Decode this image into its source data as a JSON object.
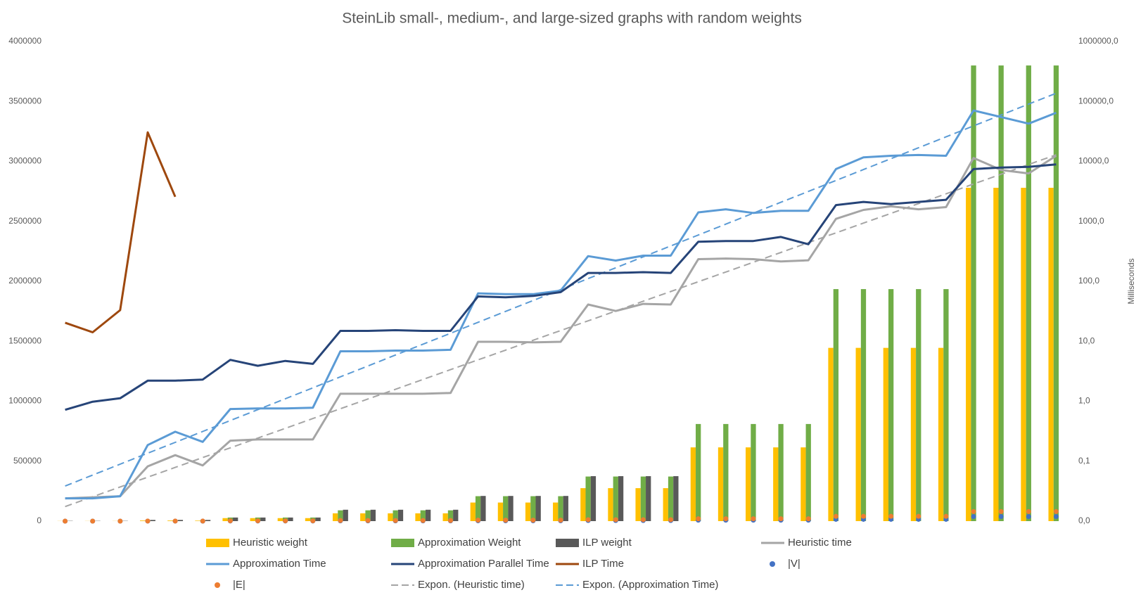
{
  "chart_data": {
    "type": "combo",
    "title": "SteinLib small-, medium-, and large-sized graphs with random weights",
    "y2_label": "Milliseconds",
    "categories": [
      null,
      null,
      null,
      null,
      null,
      null,
      null,
      null,
      null,
      null,
      null,
      null,
      null,
      null,
      null,
      null,
      null,
      null,
      null,
      null,
      null,
      null,
      null,
      null,
      null,
      null,
      null,
      null,
      null,
      null,
      null,
      null,
      null,
      null,
      null,
      null,
      null
    ],
    "ylim": [
      0,
      4000000
    ],
    "yticks": [
      0,
      500000,
      1000000,
      1500000,
      2000000,
      2500000,
      3000000,
      3500000,
      4000000
    ],
    "y2lim": [
      0.01,
      1000000
    ],
    "y2log": true,
    "y2ticks": [
      {
        "value": 0.01,
        "label": "0,0"
      },
      {
        "value": 0.1,
        "label": "0,1"
      },
      {
        "value": 1,
        "label": "1,0"
      },
      {
        "value": 10,
        "label": "10,0"
      },
      {
        "value": 100,
        "label": "100,0"
      },
      {
        "value": 1000,
        "label": "1000,0"
      },
      {
        "value": 10000,
        "label": "10000,0"
      },
      {
        "value": 100000,
        "label": "100000,0"
      },
      {
        "value": 1000000,
        "label": "1000000,0"
      }
    ],
    "grid": false,
    "legend": "bottom",
    "series": [
      {
        "name": "Heuristic weight",
        "kind": "bar",
        "color": "#FFC000",
        "values": [
          1000,
          1000,
          1000,
          5000,
          5000,
          4000,
          25000,
          25000,
          25000,
          25000,
          65000,
          65000,
          65000,
          65000,
          65000,
          155000,
          155000,
          155000,
          155000,
          275000,
          275000,
          275000,
          275000,
          615000,
          615000,
          615000,
          615000,
          615000,
          1445000,
          1445000,
          1445000,
          1445000,
          1445000,
          2780000,
          2780000,
          2780000,
          2780000
        ]
      },
      {
        "name": "Approximation Weight",
        "kind": "bar",
        "color": "#70AD47",
        "values": [
          2000,
          2000,
          2000,
          8000,
          8000,
          8000,
          30000,
          30000,
          30000,
          30000,
          90000,
          90000,
          90000,
          90000,
          90000,
          208000,
          208000,
          208000,
          208000,
          372000,
          372000,
          372000,
          372000,
          810000,
          810000,
          810000,
          810000,
          810000,
          1935000,
          1935000,
          1935000,
          1935000,
          1935000,
          3800000,
          3800000,
          3800000,
          3800000
        ]
      },
      {
        "name": "ILP weight",
        "kind": "bar",
        "color": "#595959",
        "values": [
          2000,
          2000,
          2000,
          10000,
          10000,
          10000,
          30000,
          30000,
          30000,
          30000,
          95000,
          95000,
          95000,
          95000,
          95000,
          210000,
          210000,
          210000,
          210000,
          375000,
          375000,
          375000,
          375000,
          null,
          null,
          null,
          null,
          null,
          null,
          null,
          null,
          null,
          null,
          null,
          null,
          null,
          null
        ]
      },
      {
        "name": "Heuristic time",
        "kind": "line",
        "axis": "y2",
        "color": "#A5A5A5",
        "values": [
          0.024,
          0.025,
          0.026,
          0.082,
          0.126,
          0.085,
          0.22,
          0.23,
          0.23,
          0.23,
          1.33,
          1.33,
          1.33,
          1.33,
          1.37,
          9.8,
          9.8,
          9.6,
          9.8,
          41,
          32,
          42,
          41,
          234,
          240,
          234,
          214,
          224,
          1100,
          1550,
          1780,
          1590,
          1730,
          11400,
          7200,
          6300,
          12400
        ]
      },
      {
        "name": "Approximation Time",
        "kind": "line",
        "axis": "y2",
        "color": "#5B9BD5",
        "values": [
          0.024,
          0.024,
          0.026,
          0.186,
          0.31,
          0.21,
          0.74,
          0.76,
          0.76,
          0.78,
          6.8,
          6.8,
          7.0,
          7.0,
          7.2,
          63,
          61,
          61,
          70,
          263,
          222,
          268,
          268,
          1410,
          1590,
          1380,
          1500,
          1500,
          7450,
          11700,
          12400,
          12800,
          12400,
          70600,
          55000,
          42600,
          64700
        ]
      },
      {
        "name": "Approximation Parallel Time",
        "kind": "line",
        "axis": "y2",
        "color": "#264478",
        "values": [
          0.72,
          0.98,
          1.12,
          2.2,
          2.2,
          2.3,
          4.9,
          3.9,
          4.7,
          4.2,
          14.9,
          14.9,
          15.3,
          14.9,
          14.9,
          56,
          54,
          57,
          66,
          138,
          138,
          142,
          138,
          457,
          470,
          470,
          550,
          415,
          1870,
          2110,
          1940,
          2110,
          2290,
          7450,
          7900,
          8100,
          8900
        ]
      },
      {
        "name": "ILP Time",
        "kind": "line",
        "axis": "y2",
        "color": "#9E480E",
        "values": [
          20.4,
          14.1,
          33,
          30500,
          2570,
          null,
          null,
          null,
          null,
          null,
          null,
          null,
          null,
          null,
          null,
          null,
          null,
          null,
          null,
          null,
          null,
          null,
          null,
          null,
          null,
          null,
          null,
          null,
          null,
          null,
          null,
          null,
          null,
          null,
          null,
          null,
          null
        ]
      },
      {
        "name": "|V|",
        "kind": "scatter",
        "color": "#4472C4",
        "values": [
          100,
          100,
          100,
          300,
          300,
          200,
          1000,
          1000,
          1000,
          1000,
          2000,
          2000,
          2000,
          2000,
          2000,
          3000,
          3000,
          3000,
          3000,
          5000,
          5000,
          5000,
          5000,
          8000,
          8000,
          8000,
          8000,
          8000,
          15000,
          15000,
          15000,
          15000,
          15000,
          38000,
          38000,
          38000,
          38000
        ]
      },
      {
        "name": "|E|",
        "kind": "scatter",
        "color": "#ED7D31",
        "values": [
          200,
          200,
          200,
          600,
          600,
          400,
          2500,
          2500,
          2500,
          2500,
          5000,
          5000,
          5000,
          5000,
          5000,
          8000,
          8000,
          8000,
          8000,
          12000,
          12000,
          12000,
          12000,
          20000,
          20000,
          20000,
          20000,
          20000,
          40000,
          40000,
          40000,
          40000,
          40000,
          80000,
          80000,
          80000,
          80000
        ]
      },
      {
        "name": "Expon. (Heuristic time)",
        "kind": "trend",
        "axis": "y2",
        "color": "#A5A5A5",
        "values": [
          0.0175,
          0.0255,
          0.0372,
          0.0541,
          0.0787,
          0.115,
          0.167,
          0.243,
          0.353,
          0.514,
          0.748,
          1.09,
          1.58,
          2.31,
          3.36,
          4.89,
          7.11,
          10.4,
          15.1,
          21.9,
          31.9,
          46.5,
          67.6,
          98.4,
          143,
          208,
          303,
          442,
          643,
          935,
          1360,
          1980,
          2880,
          4200,
          6110,
          8890,
          12900
        ]
      },
      {
        "name": "Expon. (Approximation Time)",
        "kind": "trend",
        "axis": "y2",
        "color": "#5B9BD5",
        "values": [
          0.0385,
          0.0586,
          0.0891,
          0.136,
          0.206,
          0.313,
          0.476,
          0.724,
          1.1,
          1.67,
          2.55,
          3.87,
          5.89,
          8.95,
          13.6,
          20.7,
          31.5,
          47.9,
          72.8,
          111,
          168,
          256,
          389,
          592,
          899,
          1370,
          2080,
          3160,
          4810,
          7310,
          11100,
          16900,
          25700,
          39100,
          59400,
          90400,
          137000
        ]
      }
    ]
  }
}
